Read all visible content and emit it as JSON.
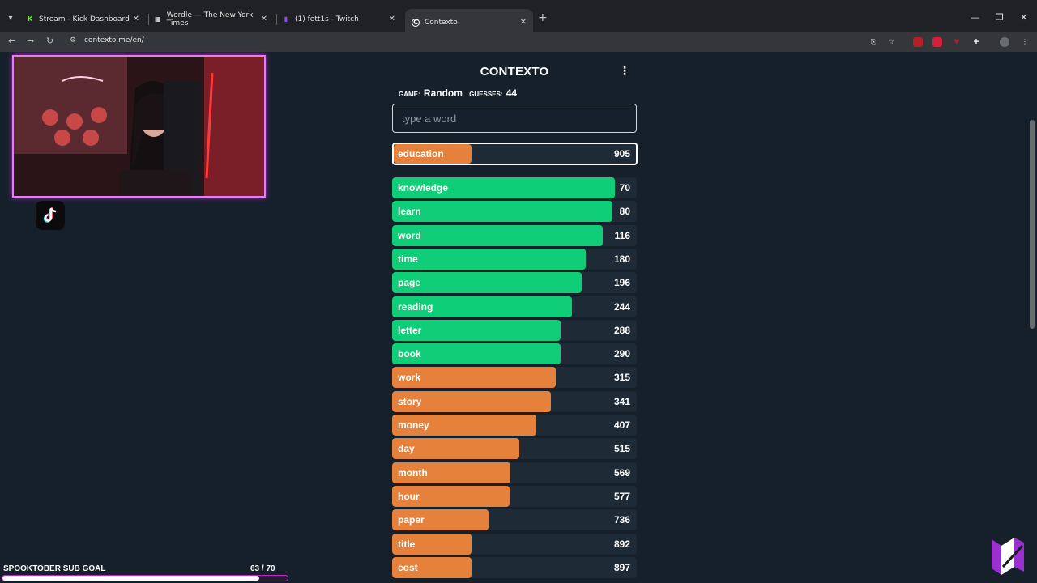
{
  "browser": {
    "tabs": [
      {
        "title": "Stream - Kick Dashboard",
        "favicon": "K",
        "favicon_color": "#53fc18"
      },
      {
        "title": "Wordle — The New York Times",
        "favicon": "▦",
        "favicon_color": "#ffffff"
      },
      {
        "title": "(1) fett1s - Twitch",
        "favicon": "▮",
        "favicon_color": "#9146ff"
      },
      {
        "title": "Contexto",
        "favicon": "C",
        "favicon_color": "#ffffff"
      }
    ],
    "active_tab": 3,
    "url": "contexto.me/en/"
  },
  "game": {
    "title": "CONTEXTO",
    "game_label": "GAME:",
    "game_value": "Random",
    "guesses_label": "GUESSES:",
    "guesses_value": "44",
    "input_placeholder": "type a word",
    "current_guess": {
      "word": "education",
      "distance": 905,
      "color": "#e5813a",
      "fill_fraction": 0.32
    },
    "guesses": [
      {
        "word": "knowledge",
        "distance": 70,
        "color": "#10cd77",
        "fill_fraction": 0.91
      },
      {
        "word": "learn",
        "distance": 80,
        "color": "#10cd77",
        "fill_fraction": 0.9
      },
      {
        "word": "word",
        "distance": 116,
        "color": "#10cd77",
        "fill_fraction": 0.86
      },
      {
        "word": "time",
        "distance": 180,
        "color": "#10cd77",
        "fill_fraction": 0.79
      },
      {
        "word": "page",
        "distance": 196,
        "color": "#10cd77",
        "fill_fraction": 0.775
      },
      {
        "word": "reading",
        "distance": 244,
        "color": "#10cd77",
        "fill_fraction": 0.735
      },
      {
        "word": "letter",
        "distance": 288,
        "color": "#10cd77",
        "fill_fraction": 0.69
      },
      {
        "word": "book",
        "distance": 290,
        "color": "#10cd77",
        "fill_fraction": 0.69
      },
      {
        "word": "work",
        "distance": 315,
        "color": "#e5813a",
        "fill_fraction": 0.67
      },
      {
        "word": "story",
        "distance": 341,
        "color": "#e5813a",
        "fill_fraction": 0.65
      },
      {
        "word": "money",
        "distance": 407,
        "color": "#e5813a",
        "fill_fraction": 0.59
      },
      {
        "word": "day",
        "distance": 515,
        "color": "#e5813a",
        "fill_fraction": 0.52
      },
      {
        "word": "month",
        "distance": 569,
        "color": "#e5813a",
        "fill_fraction": 0.485
      },
      {
        "word": "hour",
        "distance": 577,
        "color": "#e5813a",
        "fill_fraction": 0.48
      },
      {
        "word": "paper",
        "distance": 736,
        "color": "#e5813a",
        "fill_fraction": 0.395
      },
      {
        "word": "title",
        "distance": 892,
        "color": "#e5813a",
        "fill_fraction": 0.325
      },
      {
        "word": "cost",
        "distance": 897,
        "color": "#e5813a",
        "fill_fraction": 0.325
      }
    ]
  },
  "stream": {
    "sub_goal_label": "SPOOKTOBER SUB GOAL",
    "sub_goal_count": "63  /  70",
    "sub_goal_fraction": 0.9,
    "cam_border_color": "#e879f9"
  }
}
